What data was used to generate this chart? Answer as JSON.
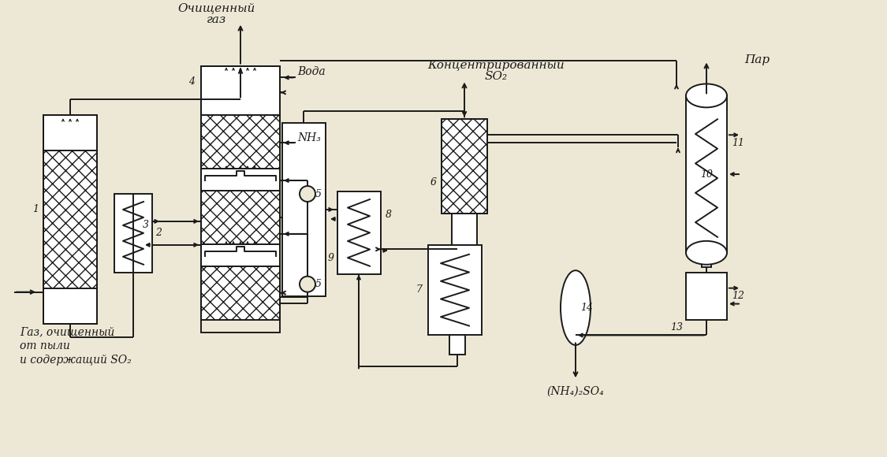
{
  "bg_color": "#ede8d5",
  "line_color": "#1a1a1a",
  "figsize": [
    11.25,
    5.8
  ],
  "dpi": 100,
  "texts": {
    "clean_gas": [
      "Очищенный",
      "газ"
    ],
    "conc_so2": [
      "Концентрированный",
      "SO₂"
    ],
    "steam": "Пар",
    "water": "Вода",
    "nh3": "NH₃",
    "input_gas": [
      "Газ, очищенный",
      "от пыли",
      "и содержащий SO₂"
    ],
    "product": "(NH₄)₂SO₄"
  }
}
